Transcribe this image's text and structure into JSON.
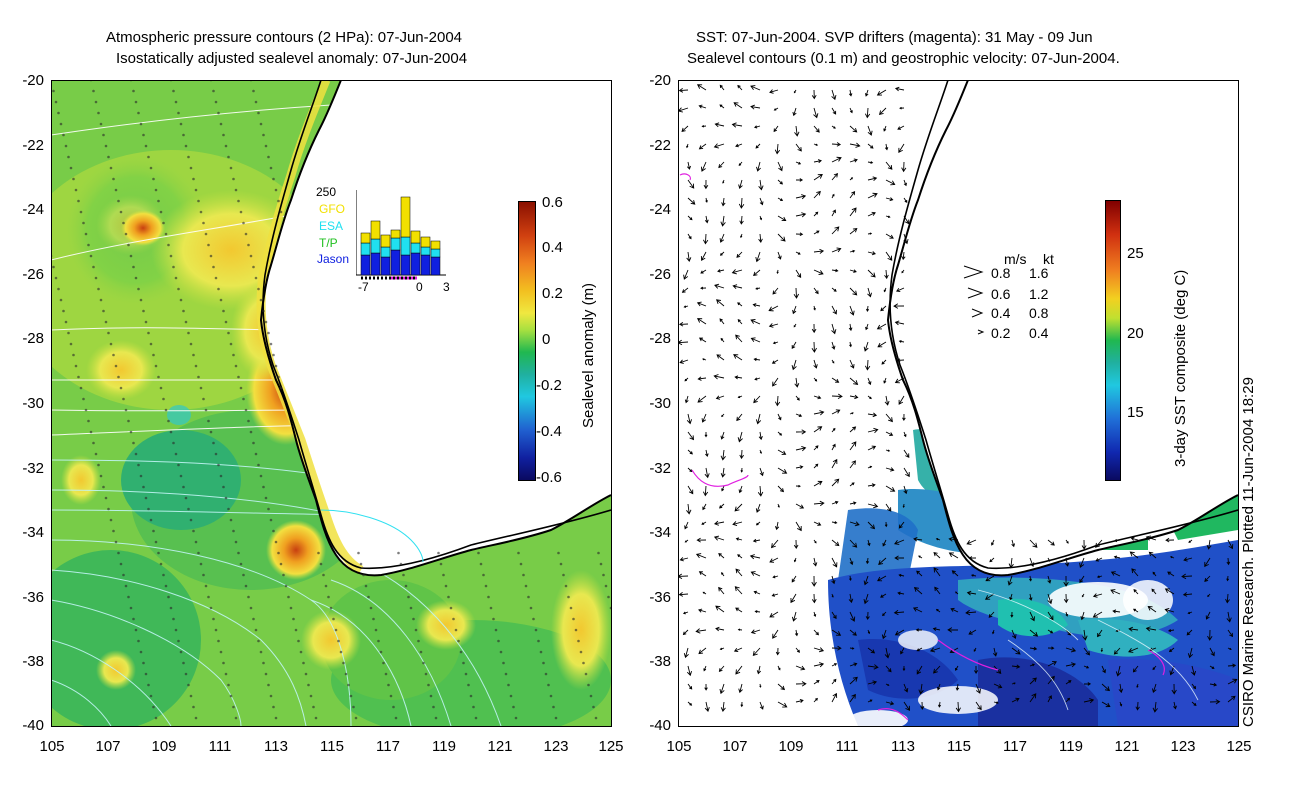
{
  "left_panel": {
    "title_line1": "Atmospheric pressure contours (2 HPa): 07-Jun-2004",
    "title_line2": "Isostatically adjusted sealevel anomaly: 07-Jun-2004",
    "y_ticks": [
      "-20",
      "-22",
      "-24",
      "-26",
      "-28",
      "-30",
      "-32",
      "-34",
      "-36",
      "-38",
      "-40"
    ],
    "x_ticks": [
      "105",
      "107",
      "109",
      "111",
      "113",
      "115",
      "117",
      "119",
      "121",
      "123",
      "125"
    ],
    "colorbar": {
      "label": "Sealevel anomaly (m)",
      "ticks": [
        "0.6",
        "0.4",
        "0.2",
        "0",
        "-0.2",
        "-0.4",
        "-0.6"
      ]
    },
    "inset": {
      "ymax_label": "250",
      "x_labels": [
        "-7",
        "0",
        "3"
      ],
      "legend": [
        {
          "name": "GFO",
          "color": "#f2e000"
        },
        {
          "name": "ESA",
          "color": "#20e0f0"
        },
        {
          "name": "T/P",
          "color": "#20c020"
        },
        {
          "name": "Jason",
          "color": "#1020e0"
        }
      ]
    }
  },
  "right_panel": {
    "title_line1": "SST: 07-Jun-2004. SVP drifters (magenta): 31 May - 09 Jun",
    "title_line2": "Sealevel contours (0.1 m) and geostrophic velocity: 07-Jun-2004.",
    "y_ticks": [
      "-20",
      "-22",
      "-24",
      "-26",
      "-28",
      "-30",
      "-32",
      "-34",
      "-36",
      "-38",
      "-40"
    ],
    "x_ticks": [
      "105",
      "107",
      "109",
      "111",
      "113",
      "115",
      "117",
      "119",
      "121",
      "123",
      "125"
    ],
    "colorbar": {
      "label": "3-day SST composite (deg C)",
      "ticks": [
        "25",
        "20",
        "15"
      ]
    },
    "velocity_legend": {
      "header_ms": "m/s",
      "header_kt": "kt",
      "rows": [
        {
          "ms": "0.8",
          "kt": "1.6"
        },
        {
          "ms": "0.6",
          "kt": "1.2"
        },
        {
          "ms": "0.4",
          "kt": "0.8"
        },
        {
          "ms": "0.2",
          "kt": "0.4"
        }
      ]
    },
    "credit": "CSIRO Marine Research. Plotted 11-Jun-2004 18:29"
  }
}
